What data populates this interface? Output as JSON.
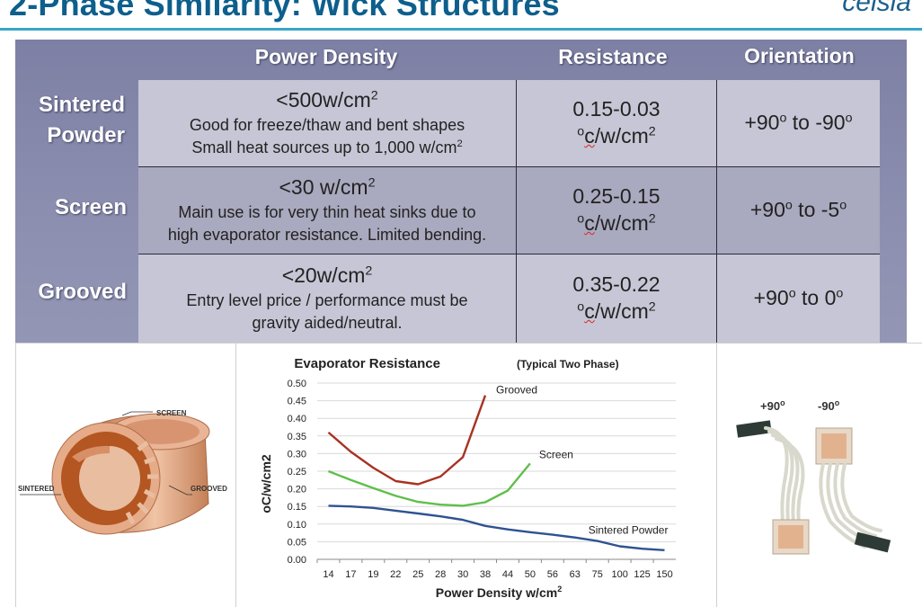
{
  "slide": {
    "title": "2-Phase Similarity:  Wick Structures",
    "logo": "celsia"
  },
  "table": {
    "headers": {
      "power_density": "Power Density",
      "resistance": "Resistance",
      "orientation": "Orientation"
    },
    "rows": [
      {
        "label_line1": "Sintered",
        "label_line2": "Powder",
        "power_value": "<500w/cm",
        "power_sup": "2",
        "note_line1": "Good for freeze/thaw and bent shapes",
        "note_line2": "Small heat sources up to 1,000 w/cm",
        "note_line2_sup": "2",
        "resistance_range": "0.15-0.03",
        "resistance_unit_sup": "o",
        "resistance_unit_underlined": "c",
        "resistance_unit": "/w/cm",
        "resistance_unit_sup2": "2",
        "orient_a": "+90",
        "orient_a_sup": "o",
        "orient_mid": " to -90",
        "orient_b_sup": "o"
      },
      {
        "label_line1": "Screen",
        "label_line2": "",
        "power_value": "<30 w/cm",
        "power_sup": "2",
        "note_line1": "Main use is for very thin heat sinks due to",
        "note_line2": "high evaporator resistance. Limited bending.",
        "note_line2_sup": "",
        "resistance_range": "0.25-0.15",
        "resistance_unit_sup": "o",
        "resistance_unit_underlined": "c",
        "resistance_unit": "/w/cm",
        "resistance_unit_sup2": "2",
        "orient_a": "+90",
        "orient_a_sup": "o",
        "orient_mid": " to -5",
        "orient_b_sup": "o"
      },
      {
        "label_line1": "Grooved",
        "label_line2": "",
        "power_value": "<20w/cm",
        "power_sup": "2",
        "note_line1": "Entry level price / performance must be",
        "note_line2": "gravity aided/neutral.",
        "note_line2_sup": "",
        "resistance_range": "0.35-0.22",
        "resistance_unit_sup": "o",
        "resistance_unit_underlined": "c",
        "resistance_unit": "/w/cm",
        "resistance_unit_sup2": "2",
        "orient_a": "+90",
        "orient_a_sup": "o",
        "orient_mid": " to 0",
        "orient_b_sup": "o"
      }
    ]
  },
  "wick_diagram": {
    "labels": {
      "screen": "SCREEN",
      "sintered": "SINTERED",
      "grooved": "GROOVED"
    },
    "colors": {
      "copper": "#d99a76",
      "copper_dark": "#b8704c",
      "powder": "#b0521e"
    }
  },
  "device_photo": {
    "label_plus": "+90",
    "label_plus_sup": "o",
    "label_minus": "-90",
    "label_minus_sup": "o"
  },
  "chart_data": {
    "type": "line",
    "title": "Evaporator Resistance",
    "subtitle": "(Typical Two Phase)",
    "xlabel": "Power Density w/cm",
    "xlabel_sup": "2",
    "ylabel": "oC/w/cm2",
    "categories": [
      "14",
      "17",
      "19",
      "22",
      "25",
      "28",
      "30",
      "38",
      "44",
      "50",
      "56",
      "63",
      "75",
      "100",
      "125",
      "150"
    ],
    "y_ticks": [
      "0.00",
      "0.05",
      "0.10",
      "0.15",
      "0.20",
      "0.25",
      "0.30",
      "0.35",
      "0.40",
      "0.45",
      "0.50"
    ],
    "ylim": [
      0,
      0.5
    ],
    "grid": true,
    "series": [
      {
        "name": "Grooved",
        "color": "#a83222",
        "values": [
          0.36,
          0.305,
          0.26,
          0.222,
          0.213,
          0.235,
          0.29,
          0.465,
          null,
          null,
          null,
          null,
          null,
          null,
          null,
          null
        ]
      },
      {
        "name": "Screen",
        "color": "#5fbf4a",
        "values": [
          0.25,
          0.225,
          0.202,
          0.18,
          0.163,
          0.155,
          0.152,
          0.162,
          0.195,
          0.272,
          null,
          null,
          null,
          null,
          null,
          null
        ]
      },
      {
        "name": "Sintered Powder",
        "color": "#2e5391",
        "values": [
          0.152,
          0.15,
          0.146,
          0.138,
          0.13,
          0.122,
          0.112,
          0.095,
          0.085,
          0.077,
          0.07,
          0.062,
          0.052,
          0.037,
          0.03,
          0.026
        ]
      }
    ]
  }
}
